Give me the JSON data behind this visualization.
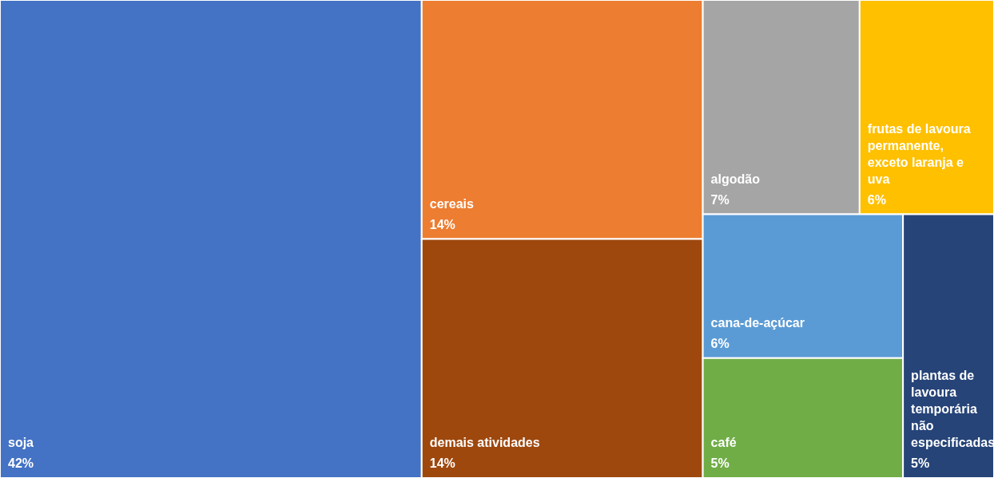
{
  "chart_data": {
    "type": "other",
    "categories": [
      "soja",
      "cereais",
      "demais atividades",
      "algodão",
      "frutas de lavoura permanente, exceto laranja e uva",
      "cana-de-açúcar",
      "café",
      "plantas de lavoura temporária não especificadas"
    ],
    "values": [
      42,
      14,
      14,
      7,
      6,
      6,
      5,
      5
    ],
    "value_labels": [
      "42%",
      "14%",
      "14%",
      "7%",
      "6%",
      "6%",
      "5%",
      "5%"
    ],
    "colors": [
      "#4472c4",
      "#ed7d31",
      "#9e480e",
      "#a5a5a5",
      "#ffc000",
      "#5b9bd5",
      "#70ad47",
      "#264478"
    ]
  }
}
